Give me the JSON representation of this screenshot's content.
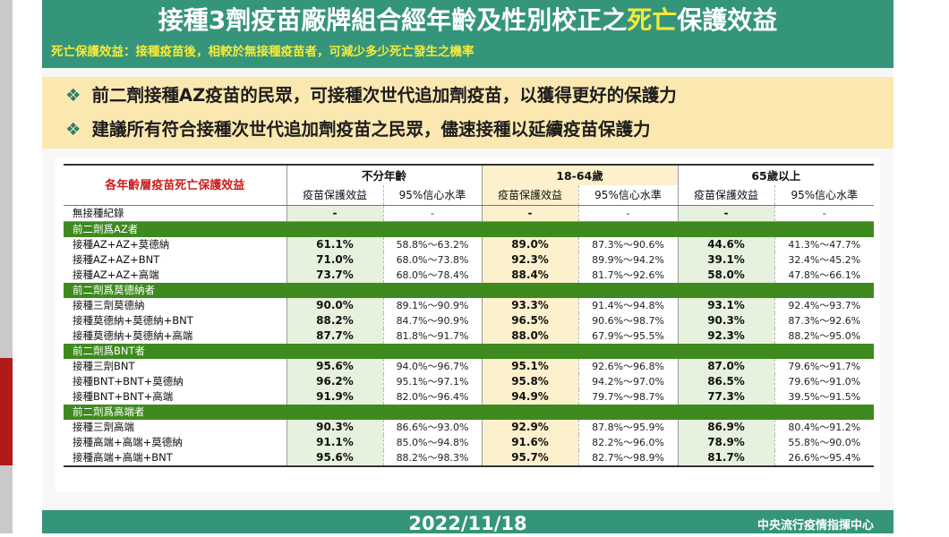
{
  "title_main": "接種3劑疫苗廠牌組合經年齡及性別校正之",
  "title_highlight": "死亡",
  "title_end": "保護效益",
  "subtitle": "死亡保護效益：接種疫苗後，相較於無接種疫苗者，可減少多少死亡發生之機率",
  "notes": [
    "前二劑接種AZ疫苗的民眾，可接種次世代追加劑疫苗，以獲得更好的保護力",
    "建議所有符合接種次世代追加劑疫苗之民眾，儘速接種以延續疫苗保護力"
  ],
  "table": {
    "corner": "各年齡層疫苗死亡保護效益",
    "age_groups": [
      "不分年齡",
      "18-64歲",
      "65歲以上"
    ],
    "sub_headers": [
      "疫苗保護效益",
      "95%信心水準"
    ],
    "no_vax": {
      "label": "無接種紀錄",
      "values": [
        "-",
        "-",
        "-",
        "-",
        "-",
        "-"
      ]
    },
    "groups": [
      {
        "name": "前二劑爲AZ者",
        "rows": [
          {
            "label": "接種AZ+AZ+莫德納",
            "values": [
              "61.1%",
              "58.8%～63.2%",
              "89.0%",
              "87.3%～90.6%",
              "44.6%",
              "41.3%～47.7%"
            ]
          },
          {
            "label": "接種AZ+AZ+BNT",
            "values": [
              "71.0%",
              "68.0%～73.8%",
              "92.3%",
              "89.9%～94.2%",
              "39.1%",
              "32.4%～45.2%"
            ]
          },
          {
            "label": "接種AZ+AZ+高端",
            "values": [
              "73.7%",
              "68.0%～78.4%",
              "88.4%",
              "81.7%～92.6%",
              "58.0%",
              "47.8%～66.1%"
            ]
          }
        ]
      },
      {
        "name": "前二劑爲莫德納者",
        "rows": [
          {
            "label": "接種三劑莫德納",
            "values": [
              "90.0%",
              "89.1%～90.9%",
              "93.3%",
              "91.4%～94.8%",
              "93.1%",
              "92.4%～93.7%"
            ]
          },
          {
            "label": "接種莫德納+莫德納+BNT",
            "values": [
              "88.2%",
              "84.7%～90.9%",
              "96.5%",
              "90.6%～98.7%",
              "90.3%",
              "87.3%～92.6%"
            ]
          },
          {
            "label": "接種莫德納+莫德納+高端",
            "values": [
              "87.7%",
              "81.8%～91.7%",
              "88.0%",
              "67.9%～95.5%",
              "92.3%",
              "88.2%～95.0%"
            ]
          }
        ]
      },
      {
        "name": "前二劑爲BNT者",
        "rows": [
          {
            "label": "接種三劑BNT",
            "values": [
              "95.6%",
              "94.0%～96.7%",
              "95.1%",
              "92.6%～96.8%",
              "87.0%",
              "79.6%～91.7%"
            ]
          },
          {
            "label": "接種BNT+BNT+莫德納",
            "values": [
              "96.2%",
              "95.1%～97.1%",
              "95.8%",
              "94.2%～97.0%",
              "86.5%",
              "79.6%～91.0%"
            ]
          },
          {
            "label": "接種BNT+BNT+高端",
            "values": [
              "91.9%",
              "82.0%～96.4%",
              "94.9%",
              "79.7%～98.7%",
              "77.3%",
              "39.5%～91.5%"
            ]
          }
        ]
      },
      {
        "name": "前二劑爲高端者",
        "rows": [
          {
            "label": "接種三劑高端",
            "values": [
              "90.3%",
              "86.6%～93.0%",
              "92.9%",
              "87.8%～95.9%",
              "86.9%",
              "80.4%～91.2%"
            ]
          },
          {
            "label": "接種高端+高端+莫德納",
            "values": [
              "91.1%",
              "85.0%～94.8%",
              "91.6%",
              "82.2%～96.0%",
              "78.9%",
              "55.8%～90.0%"
            ]
          },
          {
            "label": "接種高端+高端+BNT",
            "values": [
              "95.6%",
              "88.2%～98.3%",
              "95.7%",
              "82.7%～98.9%",
              "81.7%",
              "26.6%～95.4%"
            ]
          }
        ]
      }
    ]
  },
  "footer_date": "2022/11/18",
  "footer_org": "中央流行疫情指揮中心",
  "colors": {
    "header_green": "#35957a",
    "title_highlight": "#f5e93a",
    "notes_bg": "#fbe8b0",
    "group_row_green": "#3e8a1e",
    "corner_red": "#cc1e1e"
  }
}
